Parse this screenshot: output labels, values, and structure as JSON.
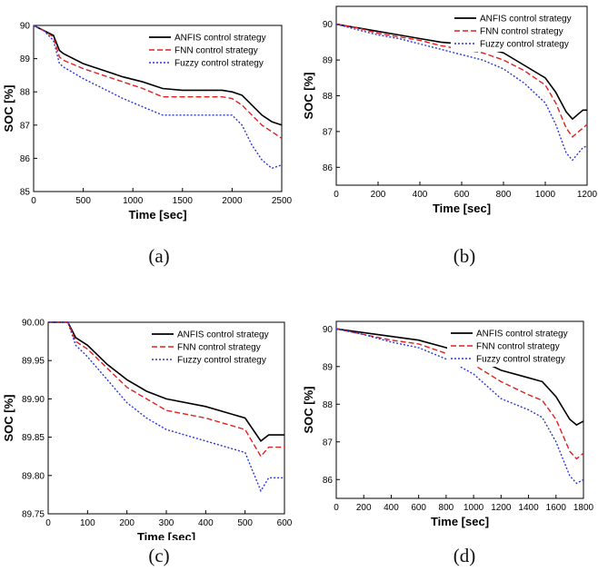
{
  "chart_data": [
    {
      "type": "line",
      "caption": "(a)",
      "xlabel": "Time [sec]",
      "ylabel": "SOC [%]",
      "xlim": [
        0,
        2500
      ],
      "ylim": [
        85,
        90
      ],
      "xticks": [
        0,
        500,
        1000,
        1500,
        2000,
        2500
      ],
      "yticks": [
        85,
        86,
        87,
        88,
        89,
        90
      ],
      "legend": "top-right",
      "series": [
        {
          "name": "ANFIS control strategy",
          "color": "#000000",
          "x": [
            0,
            100,
            200,
            260,
            300,
            500,
            700,
            900,
            1100,
            1300,
            1500,
            1700,
            1900,
            2000,
            2100,
            2200,
            2300,
            2400,
            2500
          ],
          "y": [
            90.0,
            89.85,
            89.7,
            89.25,
            89.15,
            88.85,
            88.65,
            88.45,
            88.3,
            88.1,
            88.05,
            88.05,
            88.05,
            88.0,
            87.9,
            87.6,
            87.3,
            87.1,
            87.0
          ]
        },
        {
          "name": "FNN control strategy",
          "color": "#e02020",
          "x": [
            0,
            100,
            200,
            260,
            300,
            500,
            700,
            900,
            1100,
            1300,
            1500,
            1700,
            1900,
            2000,
            2100,
            2200,
            2300,
            2400,
            2500
          ],
          "y": [
            90.0,
            89.85,
            89.65,
            89.05,
            88.95,
            88.7,
            88.5,
            88.3,
            88.1,
            87.85,
            87.85,
            87.85,
            87.85,
            87.8,
            87.6,
            87.3,
            87.0,
            86.8,
            86.6
          ]
        },
        {
          "name": "Fuzzy control strategy",
          "color": "#2a36d6",
          "x": [
            0,
            100,
            200,
            260,
            300,
            500,
            700,
            900,
            1100,
            1300,
            1500,
            1700,
            1900,
            2000,
            2100,
            2200,
            2300,
            2400,
            2500
          ],
          "y": [
            90.0,
            89.85,
            89.55,
            88.85,
            88.75,
            88.4,
            88.1,
            87.8,
            87.55,
            87.3,
            87.3,
            87.3,
            87.3,
            87.3,
            87.0,
            86.4,
            85.95,
            85.7,
            85.8
          ]
        }
      ]
    },
    {
      "type": "line",
      "caption": "(b)",
      "xlabel": "Time [sec]",
      "ylabel": "SOC [%]",
      "xlim": [
        0,
        1200
      ],
      "ylim": [
        85.5,
        90.5
      ],
      "xticks": [
        0,
        200,
        400,
        600,
        800,
        1000,
        1200
      ],
      "yticks": [
        86,
        87,
        88,
        89,
        90
      ],
      "legend": "top-right",
      "series": [
        {
          "name": "ANFIS control strategy",
          "color": "#000000",
          "x": [
            0,
            100,
            200,
            300,
            400,
            500,
            600,
            700,
            800,
            900,
            1000,
            1050,
            1100,
            1130,
            1180,
            1200
          ],
          "y": [
            90.0,
            89.9,
            89.8,
            89.7,
            89.6,
            89.5,
            89.45,
            89.35,
            89.2,
            88.85,
            88.5,
            88.1,
            87.55,
            87.35,
            87.6,
            87.6
          ]
        },
        {
          "name": "FNN control strategy",
          "color": "#e02020",
          "x": [
            0,
            100,
            200,
            300,
            400,
            500,
            600,
            700,
            800,
            900,
            1000,
            1050,
            1100,
            1130,
            1180,
            1200
          ],
          "y": [
            90.0,
            89.9,
            89.75,
            89.65,
            89.55,
            89.4,
            89.3,
            89.2,
            89.0,
            88.7,
            88.3,
            87.8,
            87.1,
            86.85,
            87.1,
            87.2
          ]
        },
        {
          "name": "Fuzzy control strategy",
          "color": "#2a36d6",
          "x": [
            0,
            100,
            200,
            300,
            400,
            500,
            600,
            700,
            800,
            900,
            1000,
            1050,
            1100,
            1130,
            1180,
            1200
          ],
          "y": [
            90.0,
            89.85,
            89.7,
            89.6,
            89.45,
            89.3,
            89.15,
            89.0,
            88.75,
            88.35,
            87.8,
            87.2,
            86.4,
            86.2,
            86.55,
            86.6
          ]
        }
      ]
    },
    {
      "type": "line",
      "caption": "(c)",
      "xlabel": "Time [sec]",
      "ylabel": "SOC [%]",
      "xlim": [
        0,
        600
      ],
      "ylim": [
        89.75,
        90.0
      ],
      "xticks": [
        0,
        100,
        200,
        300,
        400,
        500,
        600
      ],
      "yticks": [
        89.75,
        89.8,
        89.85,
        89.9,
        89.95,
        90.0
      ],
      "ytick_labels": [
        "89.75",
        "89.80",
        "89.85",
        "89.90",
        "89.95",
        "90.00"
      ],
      "legend": "top-right",
      "series": [
        {
          "name": "ANFIS control strategy",
          "color": "#000000",
          "x": [
            0,
            50,
            70,
            100,
            150,
            200,
            250,
            300,
            400,
            500,
            540,
            560,
            600
          ],
          "y": [
            90.0,
            90.0,
            89.98,
            89.97,
            89.945,
            89.925,
            89.91,
            89.9,
            89.89,
            89.875,
            89.845,
            89.853,
            89.853
          ]
        },
        {
          "name": "FNN control strategy",
          "color": "#e02020",
          "x": [
            0,
            50,
            70,
            100,
            150,
            200,
            250,
            300,
            400,
            500,
            540,
            560,
            600
          ],
          "y": [
            90.0,
            90.0,
            89.975,
            89.965,
            89.94,
            89.915,
            89.9,
            89.885,
            89.875,
            89.86,
            89.825,
            89.837,
            89.837
          ]
        },
        {
          "name": "Fuzzy control strategy",
          "color": "#2a36d6",
          "x": [
            0,
            50,
            70,
            100,
            150,
            200,
            250,
            300,
            400,
            500,
            540,
            560,
            600
          ],
          "y": [
            90.0,
            90.0,
            89.97,
            89.955,
            89.925,
            89.895,
            89.875,
            89.86,
            89.845,
            89.83,
            89.78,
            89.797,
            89.797
          ]
        }
      ]
    },
    {
      "type": "line",
      "caption": "(d)",
      "xlabel": "Time [sec]",
      "ylabel": "SOC [%]",
      "xlim": [
        0,
        1800
      ],
      "ylim": [
        85.5,
        90.2
      ],
      "xticks": [
        0,
        200,
        400,
        600,
        800,
        1000,
        1200,
        1400,
        1600,
        1800
      ],
      "yticks": [
        86,
        87,
        88,
        89,
        90
      ],
      "legend": "top-right",
      "series": [
        {
          "name": "ANFIS control strategy",
          "color": "#000000",
          "x": [
            0,
            200,
            400,
            600,
            800,
            1000,
            1200,
            1400,
            1500,
            1600,
            1700,
            1750,
            1800
          ],
          "y": [
            90.0,
            89.9,
            89.8,
            89.7,
            89.5,
            89.25,
            88.9,
            88.7,
            88.6,
            88.2,
            87.6,
            87.45,
            87.55
          ]
        },
        {
          "name": "FNN control strategy",
          "color": "#e02020",
          "x": [
            0,
            200,
            400,
            600,
            800,
            1000,
            1200,
            1400,
            1500,
            1600,
            1700,
            1750,
            1800
          ],
          "y": [
            90.0,
            89.85,
            89.7,
            89.6,
            89.35,
            89.05,
            88.6,
            88.25,
            88.1,
            87.6,
            86.75,
            86.55,
            86.7
          ]
        },
        {
          "name": "Fuzzy control strategy",
          "color": "#2a36d6",
          "x": [
            0,
            200,
            400,
            600,
            800,
            1000,
            1200,
            1400,
            1500,
            1600,
            1700,
            1750,
            1800
          ],
          "y": [
            90.0,
            89.85,
            89.65,
            89.5,
            89.2,
            88.8,
            88.15,
            87.85,
            87.65,
            87.0,
            86.1,
            85.9,
            86.0
          ]
        }
      ]
    }
  ]
}
